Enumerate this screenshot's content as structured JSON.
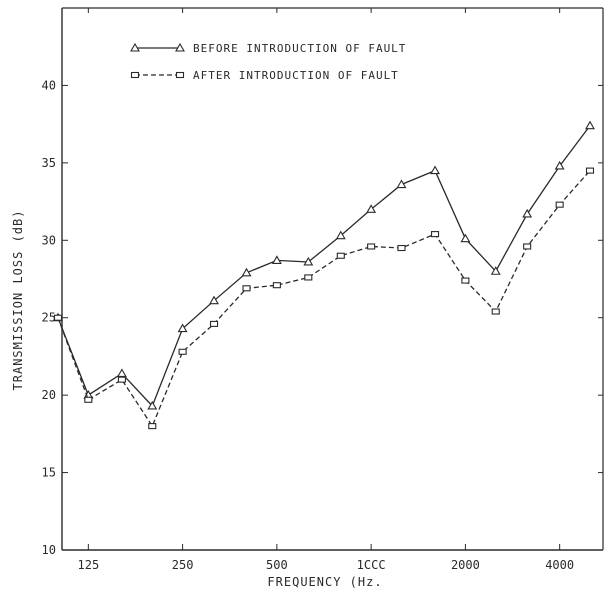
{
  "chart_data": {
    "type": "line",
    "title": "",
    "xlabel": "FREQUENCY (Hz.",
    "ylabel": "TRANSMISSION LOSS (dB)",
    "x_scale": "log",
    "xlim": [
      100,
      5000
    ],
    "ylim": [
      10,
      45
    ],
    "x_ticks": [
      {
        "value": 125,
        "label": "125"
      },
      {
        "value": 250,
        "label": "250"
      },
      {
        "value": 500,
        "label": "500"
      },
      {
        "value": 1000,
        "label": "1CCC"
      },
      {
        "value": 2000,
        "label": "2000"
      },
      {
        "value": 4000,
        "label": "4000"
      }
    ],
    "y_ticks": [
      10,
      15,
      20,
      25,
      30,
      35,
      40
    ],
    "grid": false,
    "legend_position": "top-left",
    "x": [
      100,
      125,
      160,
      200,
      250,
      315,
      400,
      500,
      630,
      800,
      1000,
      1250,
      1600,
      2000,
      2500,
      3150,
      4000,
      5000
    ],
    "series": [
      {
        "name": "BEFORE INTRODUCTION OF FAULT",
        "marker": "triangle",
        "style": "solid",
        "values": [
          25.0,
          20.0,
          21.4,
          19.3,
          24.3,
          26.1,
          27.9,
          28.7,
          28.6,
          30.3,
          32.0,
          33.6,
          34.5,
          30.1,
          28.0,
          31.7,
          34.8,
          37.4
        ]
      },
      {
        "name": "AFTER INTRODUCTION OF FAULT",
        "marker": "square",
        "style": "dashed",
        "values": [
          25.0,
          19.7,
          21.0,
          18.0,
          22.8,
          24.6,
          26.9,
          27.1,
          27.6,
          29.0,
          29.6,
          29.5,
          30.4,
          27.4,
          25.4,
          29.6,
          32.3,
          34.5
        ]
      }
    ]
  }
}
